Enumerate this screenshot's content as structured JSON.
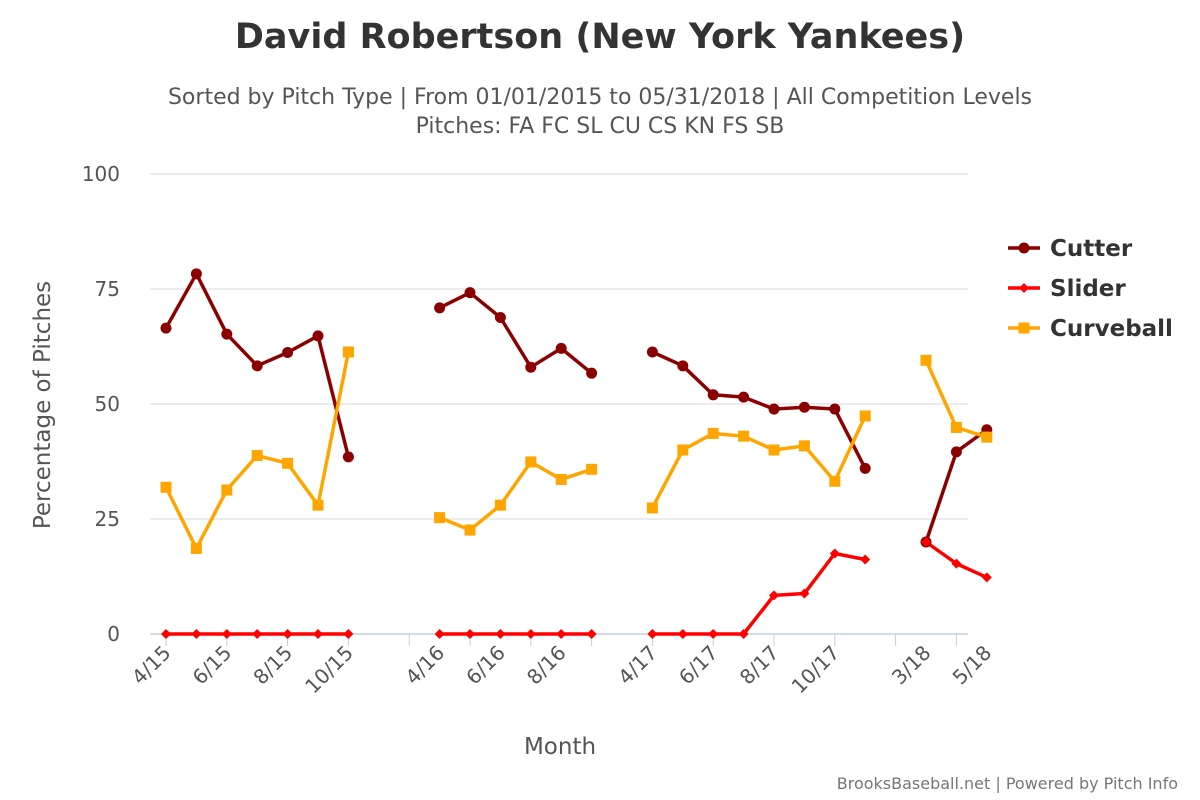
{
  "chart_data": {
    "type": "line",
    "title": "David Robertson (New York Yankees)",
    "subtitle": [
      "Sorted by Pitch Type | From 01/01/2015 to 05/31/2018 | All Competition Levels",
      "Pitches: FA FC SL CU CS KN FS SB"
    ],
    "xlabel": "Month",
    "ylabel": "Percentage of Pitches",
    "ylim": [
      0,
      100
    ],
    "yticks": [
      0,
      25,
      50,
      75,
      100
    ],
    "x_tick_labels": [
      "4/15",
      "6/15",
      "8/15",
      "10/15",
      "4/16",
      "6/16",
      "8/16",
      "4/17",
      "6/17",
      "8/17",
      "10/17",
      "3/18",
      "5/18"
    ],
    "credits": "BrooksBaseball.net | Powered by Pitch Info",
    "legend_position": "right",
    "grid": true,
    "segments": [
      [
        "4/15",
        "5/15",
        "6/15",
        "7/15",
        "8/15",
        "9/15",
        "10/15"
      ],
      [
        "4/16",
        "5/16",
        "6/16",
        "7/16",
        "8/16",
        "9/16"
      ],
      [
        "4/17",
        "5/17",
        "6/17",
        "7/17",
        "8/17",
        "9/17",
        "10/17",
        "11/17"
      ],
      [
        "3/18",
        "4/18",
        "5/18"
      ]
    ],
    "series": [
      {
        "name": "Cutter",
        "color": "#8b0000",
        "marker": "circle",
        "values": [
          [
            66.5,
            78.3,
            65.2,
            58.3,
            61.2,
            64.8,
            38.5
          ],
          [
            70.9,
            74.2,
            68.8,
            58,
            62.1,
            56.7
          ],
          [
            61.3,
            58.3,
            52,
            51.5,
            48.9,
            49.3,
            48.9,
            36
          ],
          [
            20,
            39.6,
            44.4
          ]
        ]
      },
      {
        "name": "Slider",
        "color": "#ff0000",
        "marker": "diamond",
        "values": [
          [
            0,
            0,
            0,
            0,
            0,
            0,
            0
          ],
          [
            0,
            0,
            0,
            0,
            0,
            0
          ],
          [
            0,
            0,
            0,
            0,
            8.4,
            8.8,
            17.5,
            16.2
          ],
          [
            20,
            15.3,
            12.3
          ]
        ]
      },
      {
        "name": "Curveball",
        "color": "#ffa500",
        "marker": "square",
        "values": [
          [
            31.9,
            18.6,
            31.3,
            38.8,
            37.1,
            28,
            61.3
          ],
          [
            25.3,
            22.6,
            28,
            37.4,
            33.6,
            35.8
          ],
          [
            27.4,
            40,
            43.6,
            43,
            40,
            40.9,
            33.2,
            47.4
          ],
          [
            59.5,
            44.9,
            42.8
          ]
        ]
      }
    ]
  }
}
